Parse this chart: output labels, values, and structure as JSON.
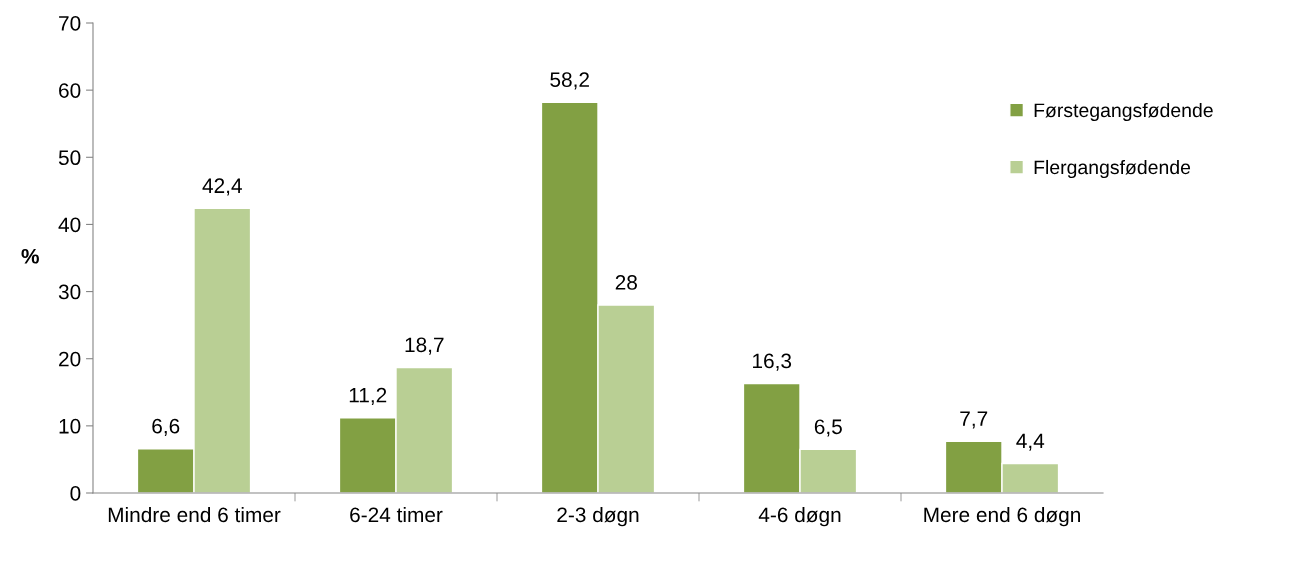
{
  "chart_data": {
    "type": "bar",
    "ylabel": "%",
    "categories": [
      "Mindre end 6 timer",
      "6-24 timer",
      "2-3 døgn",
      "4-6 døgn",
      "Mere end 6 døgn"
    ],
    "series": [
      {
        "name": "Førstegangsfødende",
        "color": "#82a043",
        "values": [
          6.6,
          11.2,
          58.2,
          16.3,
          7.7
        ],
        "value_labels": [
          "6,6",
          "11,2",
          "58,2",
          "16,3",
          "7,7"
        ]
      },
      {
        "name": "Flergangsfødende",
        "color": "#b9cf94",
        "values": [
          42.4,
          18.7,
          28,
          6.5,
          4.4
        ],
        "value_labels": [
          "42,4",
          "18,7",
          "28",
          "6,5",
          "4,4"
        ]
      }
    ],
    "ylim": [
      0,
      70
    ],
    "yticks": [
      0,
      10,
      20,
      30,
      40,
      50,
      60,
      70
    ],
    "grid": false,
    "legend": "right"
  }
}
